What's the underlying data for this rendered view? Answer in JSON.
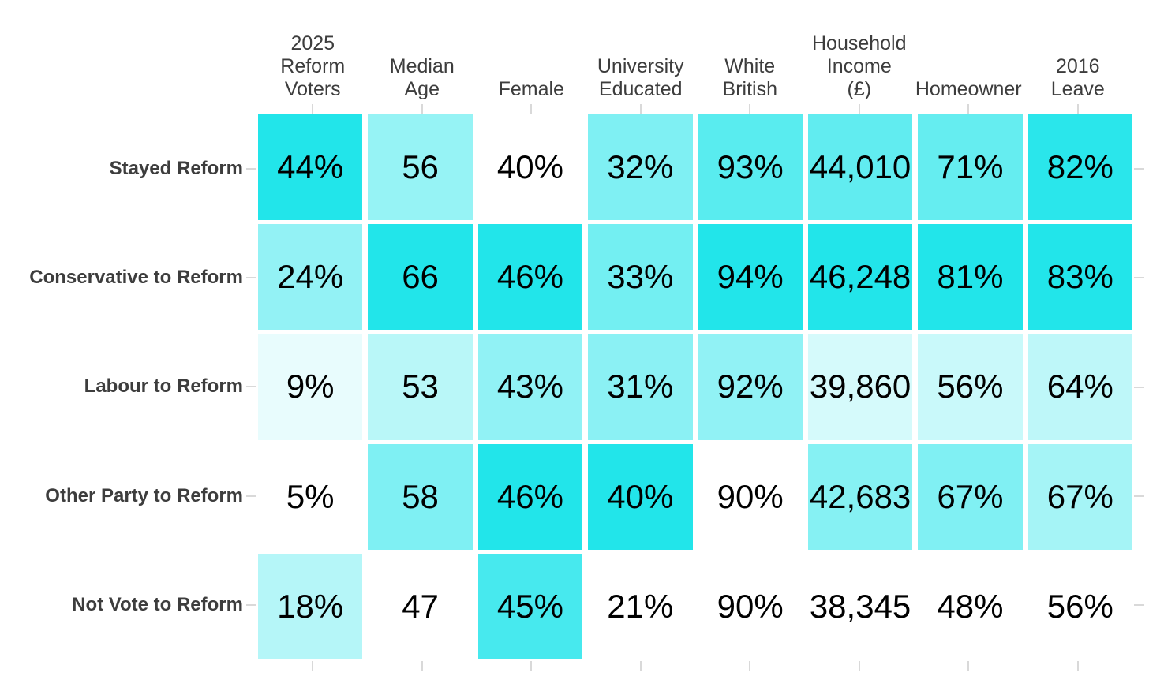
{
  "chart_data": {
    "type": "heatmap",
    "title": "",
    "columns": [
      "2025 Reform Voters",
      "Median Age",
      "Female",
      "University Educated",
      "White British",
      "Household Income (£)",
      "Homeowner",
      "2016 Leave"
    ],
    "column_header_lines": [
      [
        "2025",
        "Reform",
        "Voters"
      ],
      [
        "Median",
        "Age"
      ],
      [
        "Female"
      ],
      [
        "University",
        "Educated"
      ],
      [
        "White",
        "British"
      ],
      [
        "Household",
        "Income",
        "(£)"
      ],
      [
        "Homeowner"
      ],
      [
        "2016",
        "Leave"
      ]
    ],
    "rows": [
      "Stayed Reform",
      "Conservative to Reform",
      "Labour to Reform",
      "Other Party to Reform",
      "Not Vote to Reform"
    ],
    "cells": [
      [
        "44%",
        "56",
        "40%",
        "32%",
        "93%",
        "44,010",
        "71%",
        "82%"
      ],
      [
        "24%",
        "66",
        "46%",
        "33%",
        "94%",
        "46,248",
        "81%",
        "83%"
      ],
      [
        "9%",
        "53",
        "43%",
        "31%",
        "92%",
        "39,860",
        "56%",
        "64%"
      ],
      [
        "5%",
        "58",
        "46%",
        "40%",
        "90%",
        "42,683",
        "67%",
        "67%"
      ],
      [
        "18%",
        "47",
        "45%",
        "21%",
        "90%",
        "38,345",
        "48%",
        "56%"
      ]
    ],
    "values": [
      [
        44,
        56,
        40,
        32,
        93,
        44010,
        71,
        82
      ],
      [
        24,
        66,
        46,
        33,
        94,
        46248,
        81,
        83
      ],
      [
        9,
        53,
        43,
        31,
        92,
        39860,
        56,
        64
      ],
      [
        5,
        58,
        46,
        40,
        90,
        42683,
        67,
        67
      ],
      [
        18,
        47,
        45,
        21,
        90,
        38345,
        48,
        56
      ]
    ],
    "color_scale": {
      "low": "#FFFFFF",
      "high": "#22E5EA",
      "normalization": "per-column min-max"
    },
    "style_colors": {
      "axis_tick": "#D9D9D9",
      "axis_label": "#3D3D3D",
      "cell_text": "#000000",
      "background": "#FFFFFF"
    },
    "legend": "none",
    "grid": "off"
  }
}
